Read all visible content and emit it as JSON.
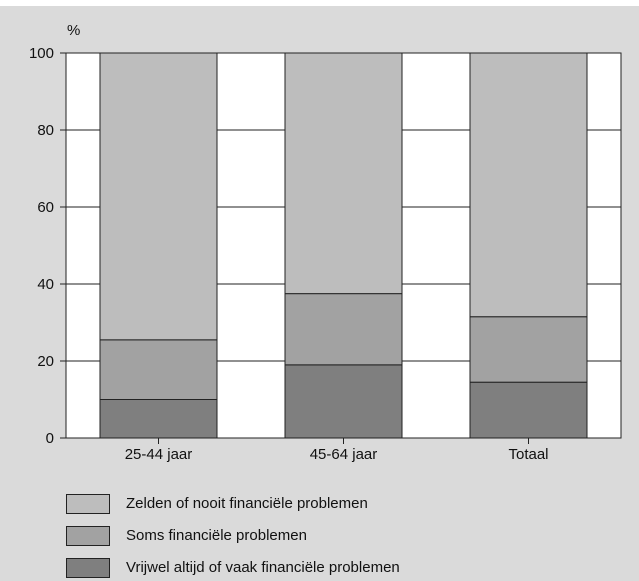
{
  "chart_data": {
    "type": "bar",
    "stacked": true,
    "ylabel": "%",
    "ylim": [
      0,
      100
    ],
    "yticks": [
      0,
      20,
      40,
      60,
      80,
      100
    ],
    "grid": true,
    "legend_placement": "bottom",
    "categories": [
      "25-44 jaar",
      "45-64 jaar",
      "Totaal"
    ],
    "series": [
      {
        "name": "Vrijwel altijd of vaak financiële problemen",
        "color": "#7f7f7f",
        "values": [
          10,
          19,
          14.5
        ]
      },
      {
        "name": "Soms financiële problemen",
        "color": "#a2a2a2",
        "values": [
          15.5,
          18.5,
          17
        ]
      },
      {
        "name": "Zelden of nooit financiële problemen",
        "color": "#bdbdbd",
        "values": [
          74.5,
          62.5,
          68.5
        ]
      }
    ],
    "legend_order": [
      2,
      1,
      0
    ]
  }
}
